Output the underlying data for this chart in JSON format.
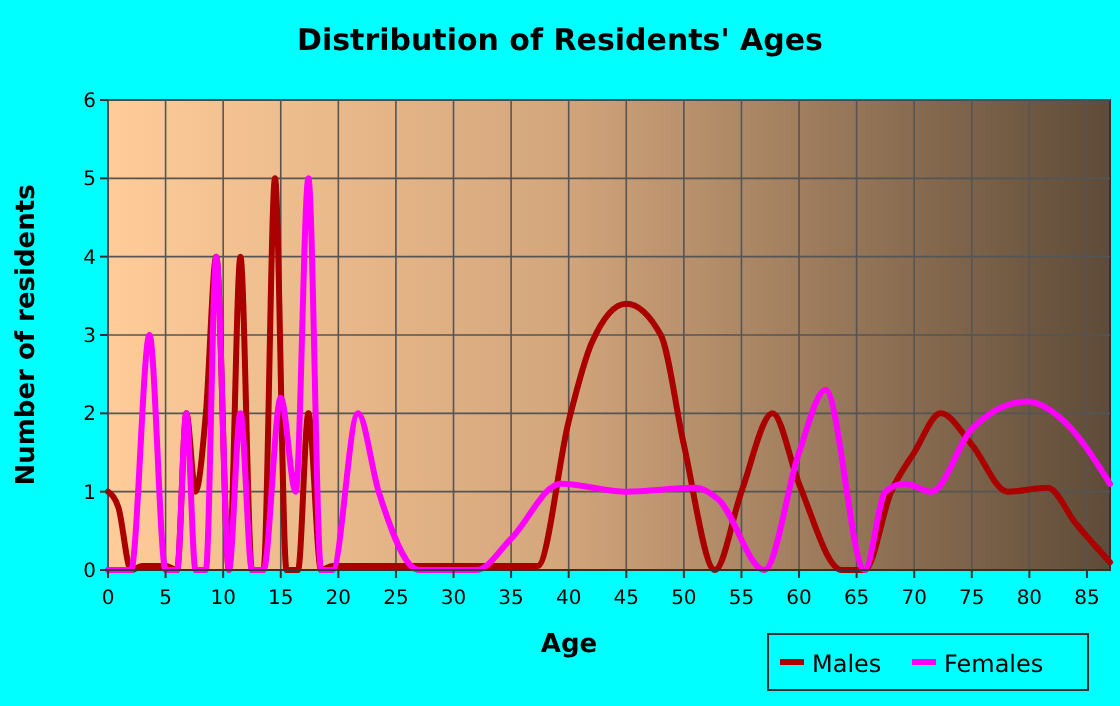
{
  "chart_data": {
    "type": "line",
    "title": "Distribution of Residents' Ages",
    "xlabel": "Age",
    "ylabel": "Number of residents",
    "xlim": [
      0,
      87
    ],
    "xticks": [
      0,
      5,
      10,
      15,
      20,
      25,
      30,
      35,
      40,
      45,
      50,
      55,
      60,
      65,
      70,
      75,
      80,
      85
    ],
    "ylim": [
      0,
      6
    ],
    "yticks": [
      0,
      1,
      2,
      3,
      4,
      5,
      6
    ],
    "grid": true,
    "legend": "bottom right",
    "line_style": "solid",
    "marker": "none",
    "series": [
      {
        "name": "Males",
        "color": "#aa0000",
        "x": [
          0,
          0.9,
          2,
          3,
          5,
          6,
          6.8,
          7.6,
          8.5,
          9.4,
          10.5,
          11.5,
          12.5,
          13.5,
          14.5,
          15.5,
          16.5,
          17.4,
          18.5,
          19.5,
          25,
          30,
          37.3,
          40,
          42,
          45,
          48,
          50,
          52.7,
          55,
          57.7,
          60,
          63.7,
          65.7,
          68,
          70,
          72.3,
          75,
          78.1,
          81.6,
          84,
          87
        ],
        "values": [
          1,
          0.8,
          0,
          0.05,
          0.05,
          0,
          2,
          1,
          2,
          4,
          0,
          4,
          0,
          0,
          5,
          0,
          0,
          2,
          0,
          0.05,
          0.05,
          0.05,
          0.05,
          1.9,
          2.9,
          3.4,
          3,
          1.6,
          0,
          1,
          2,
          1.1,
          0,
          0,
          1,
          1.5,
          2,
          1.6,
          1,
          1.05,
          0.6,
          0.1
        ]
      },
      {
        "name": "Females",
        "color": "#ff00ff",
        "x": [
          0,
          1,
          2,
          3.6,
          5,
          6,
          6.8,
          7.6,
          8.5,
          9.4,
          10.5,
          11.5,
          12.5,
          13.5,
          15,
          16.3,
          17.4,
          18.5,
          19.5,
          21.7,
          23.5,
          27,
          32,
          35,
          39.3,
          45,
          51,
          53,
          57,
          60,
          62.3,
          65.7,
          67.5,
          69.2,
          71.5,
          75,
          79.8,
          83,
          87
        ],
        "values": [
          0,
          0,
          0,
          3,
          0,
          0,
          2,
          0,
          0,
          4,
          0,
          2,
          0,
          0,
          2.2,
          1,
          5,
          0,
          0,
          2,
          1,
          0,
          0,
          0.4,
          1.1,
          1,
          1.05,
          0.9,
          0,
          1.5,
          2.3,
          0,
          1,
          1.1,
          1,
          1.8,
          2.15,
          1.9,
          1.1
        ]
      }
    ]
  }
}
